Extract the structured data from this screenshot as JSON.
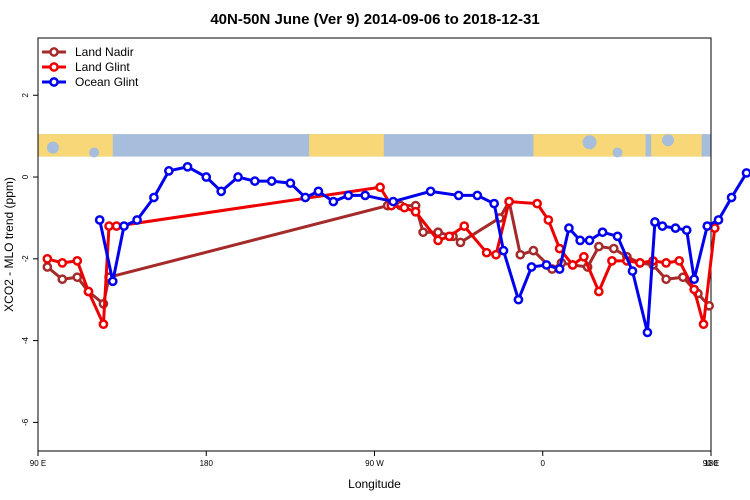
{
  "chart_data": {
    "type": "line",
    "title": "40N-50N June (Ver 9)   2014-09-06 to 2018-12-31",
    "xlabel": "Longitude",
    "ylabel": "XCO2 - MLO trend (ppm)",
    "xlim": [
      90,
      450
    ],
    "ylim": [
      -6.7,
      3.4
    ],
    "x_ticks": [
      {
        "value": 90,
        "label": "90 E"
      },
      {
        "value": 180,
        "label": "180"
      },
      {
        "value": 270,
        "label": "90 W"
      },
      {
        "value": 360,
        "label": "0"
      },
      {
        "value": 450,
        "label": "90 E"
      },
      {
        "value": 540,
        "label": "180"
      }
    ],
    "x_axis_note": "Longitude axis wraps: 90E -> 180 -> 90W -> 0 -> 90E -> 180 (x in degrees east, continuous from 90 to 450)",
    "y_ticks": [
      {
        "value": 2,
        "label": "2"
      },
      {
        "value": 0,
        "label": "0"
      },
      {
        "value": -2,
        "label": "-2"
      },
      {
        "value": -4,
        "label": "-4"
      },
      {
        "value": -6,
        "label": "-6"
      }
    ],
    "legend_position": "top-left",
    "map_strip": {
      "ymin": 0.5,
      "ymax": 1.05,
      "land_color": "#f7d777",
      "ocean_color": "#a6bddb"
    },
    "series": [
      {
        "name": "Land Nadir",
        "color": "#a52a2a",
        "x": [
          95,
          103,
          111,
          117,
          125,
          128,
          277,
          284,
          292,
          296,
          304,
          312,
          316,
          337,
          342,
          348,
          355,
          365,
          370,
          376,
          384,
          390,
          398,
          405,
          412,
          419,
          426,
          435,
          443,
          449
        ],
        "y": [
          -2.2,
          -2.5,
          -2.45,
          -2.8,
          -3.1,
          -2.45,
          -0.7,
          -0.7,
          -0.7,
          -1.35,
          -1.35,
          -1.45,
          -1.6,
          -1.0,
          -0.6,
          -1.9,
          -1.8,
          -2.25,
          -2.1,
          -2.15,
          -2.2,
          -1.7,
          -1.75,
          -1.95,
          -2.1,
          -2.15,
          -2.5,
          -2.45,
          -2.85,
          -3.15
        ]
      },
      {
        "name": "Land Glint",
        "color": "#ee0000",
        "x": [
          95,
          103,
          111,
          117,
          125,
          128,
          132,
          273,
          279,
          286,
          292,
          304,
          310,
          318,
          330,
          335,
          342,
          357,
          363,
          369,
          376,
          382,
          390,
          397,
          405,
          412,
          419,
          426,
          433,
          441,
          446,
          452
        ],
        "y": [
          -2.0,
          -2.1,
          -2.05,
          -2.8,
          -3.6,
          -1.2,
          -1.2,
          -0.25,
          -0.7,
          -0.75,
          -0.85,
          -1.55,
          -1.45,
          -1.2,
          -1.85,
          -1.9,
          -0.6,
          -0.65,
          -1.05,
          -1.75,
          -2.15,
          -1.95,
          -2.8,
          -2.05,
          -2.05,
          -2.1,
          -2.05,
          -2.1,
          -2.05,
          -2.75,
          -3.6,
          -1.25
        ]
      },
      {
        "name": "Ocean Glint",
        "color": "#0000ee",
        "x": [
          123,
          130,
          136,
          143,
          152,
          160,
          170,
          180,
          188,
          197,
          206,
          215,
          225,
          233,
          240,
          248,
          256,
          265,
          280,
          300,
          315,
          325,
          334,
          339,
          347,
          354,
          362,
          369,
          374,
          380,
          385,
          392,
          400,
          408,
          416,
          420,
          424,
          431,
          437,
          441,
          448,
          454,
          461,
          469,
          477
        ],
        "y": [
          -1.05,
          -2.55,
          -1.2,
          -1.05,
          -0.5,
          0.15,
          0.25,
          0.0,
          -0.35,
          0.0,
          -0.1,
          -0.1,
          -0.15,
          -0.5,
          -0.35,
          -0.6,
          -0.45,
          -0.45,
          -0.6,
          -0.35,
          -0.45,
          -0.45,
          -0.65,
          -1.8,
          -3.0,
          -2.2,
          -2.15,
          -2.25,
          -1.25,
          -1.55,
          -1.55,
          -1.35,
          -1.45,
          -2.3,
          -3.8,
          -1.1,
          -1.2,
          -1.25,
          -1.3,
          -2.5,
          -1.2,
          -1.05,
          -0.5,
          0.1,
          0.1
        ]
      }
    ]
  }
}
